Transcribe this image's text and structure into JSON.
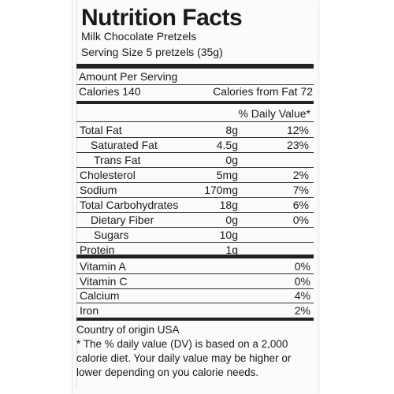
{
  "header": {
    "title": "Nutrition Facts",
    "product": "Milk Chocolate Pretzels",
    "serving": "Serving Size 5 pretzels (35g)"
  },
  "amount_per_serving": "Amount Per Serving",
  "calories": "Calories 140",
  "calories_from_fat": "Calories from Fat 72",
  "dv_header": "% Daily Value*",
  "nutrients": [
    {
      "name": "Total Fat",
      "amount": "8g",
      "dv": "12%"
    },
    {
      "name": "Saturated Fat",
      "amount": "4.5g",
      "dv": "23%"
    },
    {
      "name": "Trans Fat",
      "amount": "0g",
      "dv": ""
    },
    {
      "name": "Cholesterol",
      "amount": "5mg",
      "dv": "2%"
    },
    {
      "name": "Sodium",
      "amount": "170mg",
      "dv": "7%"
    },
    {
      "name": "Total Carbohydrates",
      "amount": "18g",
      "dv": "6%"
    },
    {
      "name": "Dietary Fiber",
      "amount": "0g",
      "dv": "0%"
    },
    {
      "name": "Sugars",
      "amount": "10g",
      "dv": ""
    },
    {
      "name": "Protein",
      "amount": "1g",
      "dv": ""
    }
  ],
  "vitamins": [
    {
      "name": "Vitamin A",
      "dv": "0%"
    },
    {
      "name": "Vitamin C",
      "dv": "0%"
    },
    {
      "name": "Calcium",
      "dv": "4%"
    },
    {
      "name": "Iron",
      "dv": "2%"
    }
  ],
  "origin": "Country of origin USA",
  "footnote": "* The % daily value (DV) is based on a 2,000 calorie diet. Your daily value may be higher or lower depending on you calorie needs."
}
